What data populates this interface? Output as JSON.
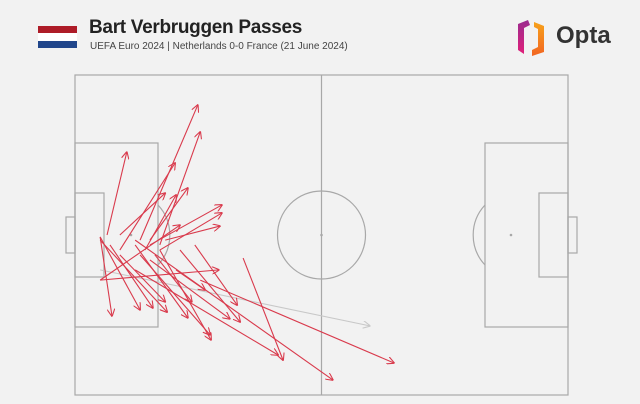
{
  "header": {
    "title": "Bart Verbruggen Passes",
    "subtitle": "UEFA Euro 2024 | Netherlands 0-0 France (21 June 2024)",
    "flag_colors": [
      "#ae1c28",
      "#ffffff",
      "#21468b"
    ],
    "logo_text": "Opta"
  },
  "colors": {
    "successful_pass": "#d93a4c",
    "unsuccessful_pass": "#c8c8c8",
    "pitch_lines": "#a8a8a8",
    "background": "#f2f2f2"
  },
  "chart_data": {
    "type": "pass-map",
    "pitch": {
      "x_range": [
        0,
        100
      ],
      "y_range": [
        0,
        100
      ],
      "attacking_direction": "right"
    },
    "passes": [
      {
        "x": 13.2,
        "y": 48.4,
        "end_x": 24.9,
        "end_y": 90.6,
        "outcome": "successful"
      },
      {
        "x": 17.2,
        "y": 46.9,
        "end_x": 25.4,
        "end_y": 82.2,
        "outcome": "successful"
      },
      {
        "x": 6.5,
        "y": 50.0,
        "end_x": 10.5,
        "end_y": 75.9,
        "outcome": "successful"
      },
      {
        "x": 9.1,
        "y": 45.3,
        "end_x": 20.3,
        "end_y": 72.5,
        "outcome": "successful"
      },
      {
        "x": 15.2,
        "y": 48.4,
        "end_x": 22.9,
        "end_y": 64.7,
        "outcome": "successful"
      },
      {
        "x": 14.2,
        "y": 45.3,
        "end_x": 20.5,
        "end_y": 62.5,
        "outcome": "successful"
      },
      {
        "x": 9.1,
        "y": 50.0,
        "end_x": 18.3,
        "end_y": 63.1,
        "outcome": "successful"
      },
      {
        "x": 15.2,
        "y": 46.9,
        "end_x": 29.8,
        "end_y": 59.4,
        "outcome": "successful"
      },
      {
        "x": 17.2,
        "y": 45.3,
        "end_x": 29.8,
        "end_y": 56.9,
        "outcome": "successful"
      },
      {
        "x": 18.3,
        "y": 48.4,
        "end_x": 29.4,
        "end_y": 52.8,
        "outcome": "successful"
      },
      {
        "x": 5.1,
        "y": 49.4,
        "end_x": 7.5,
        "end_y": 24.7,
        "outcome": "successful"
      },
      {
        "x": 5.1,
        "y": 49.4,
        "end_x": 13.2,
        "end_y": 26.6,
        "outcome": "successful"
      },
      {
        "x": 7.1,
        "y": 46.9,
        "end_x": 15.8,
        "end_y": 27.2,
        "outcome": "successful"
      },
      {
        "x": 5.1,
        "y": 48.4,
        "end_x": 18.7,
        "end_y": 25.9,
        "outcome": "successful"
      },
      {
        "x": 9.1,
        "y": 43.8,
        "end_x": 18.3,
        "end_y": 29.1,
        "outcome": "successful"
      },
      {
        "x": 12.2,
        "y": 46.9,
        "end_x": 22.9,
        "end_y": 24.1,
        "outcome": "successful"
      },
      {
        "x": 16.2,
        "y": 43.8,
        "end_x": 23.7,
        "end_y": 29.1,
        "outcome": "successful"
      },
      {
        "x": 13.2,
        "y": 43.8,
        "end_x": 27.4,
        "end_y": 18.8,
        "outcome": "successful"
      },
      {
        "x": 17.2,
        "y": 45.3,
        "end_x": 27.6,
        "end_y": 17.2,
        "outcome": "successful"
      },
      {
        "x": 15.2,
        "y": 42.2,
        "end_x": 31.4,
        "end_y": 23.8,
        "outcome": "successful"
      },
      {
        "x": 21.3,
        "y": 45.3,
        "end_x": 33.5,
        "end_y": 22.8,
        "outcome": "successful"
      },
      {
        "x": 24.3,
        "y": 46.9,
        "end_x": 32.9,
        "end_y": 28.1,
        "outcome": "successful"
      },
      {
        "x": 12.2,
        "y": 39.1,
        "end_x": 41.2,
        "end_y": 12.5,
        "outcome": "successful"
      },
      {
        "x": 34.1,
        "y": 42.8,
        "end_x": 42.2,
        "end_y": 10.9,
        "outcome": "successful"
      },
      {
        "x": 12.2,
        "y": 48.4,
        "end_x": 52.3,
        "end_y": 4.7,
        "outcome": "successful"
      },
      {
        "x": 25.4,
        "y": 35.9,
        "end_x": 64.7,
        "end_y": 10.0,
        "outcome": "successful"
      },
      {
        "x": 5.1,
        "y": 35.9,
        "end_x": 29.2,
        "end_y": 39.1,
        "outcome": "successful"
      },
      {
        "x": 5.1,
        "y": 35.9,
        "end_x": 21.3,
        "end_y": 53.1,
        "outcome": "successful"
      },
      {
        "x": 20.5,
        "y": 39.1,
        "end_x": 26.4,
        "end_y": 32.8,
        "outcome": "successful"
      },
      {
        "x": 5.1,
        "y": 39.1,
        "end_x": 59.8,
        "end_y": 21.6,
        "outcome": "unsuccessful"
      }
    ]
  }
}
